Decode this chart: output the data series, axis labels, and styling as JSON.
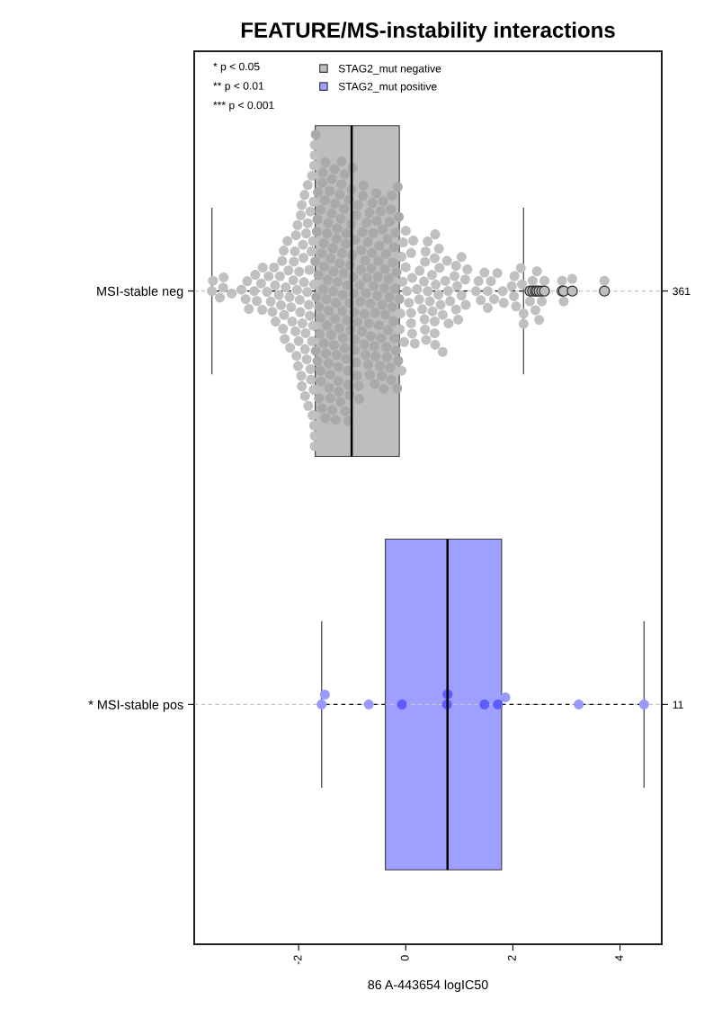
{
  "chart_data": {
    "type": "box",
    "orientation": "horizontal",
    "title": "FEATURE/MS-instability interactions",
    "xlabel": "86 A-443654 logIC50",
    "categories": [
      "MSI-stable neg",
      "* MSI-stable pos"
    ],
    "y2_categories": [
      "361",
      "11"
    ],
    "xlim": [
      -3.95,
      4.78
    ],
    "xticks": [
      -2,
      0,
      2,
      4
    ],
    "grid": "y",
    "legend": "top left",
    "marker": "circle",
    "annotations": [
      "* p < 0.05",
      "** p < 0.01",
      "*** p < 0.001"
    ],
    "series": [
      {
        "name": "STAG2_mut negative",
        "color": "#bebebe",
        "boxes": [
          {
            "low": -3.62,
            "q1": -1.69,
            "median": -1.01,
            "q3": -0.12,
            "high": 2.2,
            "outliers": [
              2.32,
              2.37,
              2.42,
              2.45,
              2.49,
              2.54,
              2.59,
              2.92,
              2.95,
              3.11,
              3.71
            ]
          },
          null
        ]
      },
      {
        "name": "STAG2_mut positive",
        "color": "#9f9fff",
        "boxes": [
          null,
          {
            "low": -1.57,
            "q1": -0.38,
            "median": 0.78,
            "q3": 1.79,
            "high": 4.45
          }
        ]
      },
      {
        "type": "scatter",
        "color": "#c0c0c0",
        "x": [
          "MSI-stable neg",
          "MSI-stable neg",
          "MSI-stable neg",
          "MSI-stable neg",
          "MSI-stable neg",
          "MSI-stable neg",
          "MSI-stable neg",
          "MSI-stable neg",
          "MSI-stable neg",
          "MSI-stable neg",
          "MSI-stable neg",
          "MSI-stable neg",
          "MSI-stable neg",
          "MSI-stable neg",
          "MSI-stable neg",
          "MSI-stable neg",
          "MSI-stable neg",
          "MSI-stable neg",
          "MSI-stable neg",
          "MSI-stable neg",
          "MSI-stable neg",
          "MSI-stable neg",
          "MSI-stable neg",
          "MSI-stable neg",
          "MSI-stable neg",
          "MSI-stable neg",
          "MSI-stable neg",
          "MSI-stable neg",
          "MSI-stable neg",
          "MSI-stable neg",
          "MSI-stable neg",
          "MSI-stable neg",
          "MSI-stable neg",
          "MSI-stable neg",
          "MSI-stable neg",
          "MSI-stable neg",
          "MSI-stable neg",
          "MSI-stable neg",
          "MSI-stable neg",
          "MSI-stable neg",
          "MSI-stable neg",
          "MSI-stable neg",
          "MSI-stable neg",
          "MSI-stable neg",
          "MSI-stable neg",
          "MSI-stable neg",
          "MSI-stable neg",
          "MSI-stable neg",
          "MSI-stable neg",
          "MSI-stable neg",
          "MSI-stable neg",
          "MSI-stable neg",
          "MSI-stable neg",
          "MSI-stable neg",
          "MSI-stable neg",
          "MSI-stable neg",
          "MSI-stable neg",
          "MSI-stable neg",
          "MSI-stable neg",
          "MSI-stable neg",
          "MSI-stable neg",
          "MSI-stable neg",
          "MSI-stable neg",
          "MSI-stable neg",
          "MSI-stable neg",
          "MSI-stable neg",
          "MSI-stable neg",
          "MSI-stable neg",
          "MSI-stable neg",
          "MSI-stable neg",
          "MSI-stable neg",
          "MSI-stable neg",
          "MSI-stable neg",
          "MSI-stable neg",
          "MSI-stable neg",
          "MSI-stable neg",
          "MSI-stable neg",
          "MSI-stable neg",
          "MSI-stable neg",
          "MSI-stable neg",
          "MSI-stable neg",
          "MSI-stable neg",
          "MSI-stable neg",
          "MSI-stable neg",
          "MSI-stable neg",
          "MSI-stable neg",
          "MSI-stable neg",
          "MSI-stable neg",
          "MSI-stable neg",
          "MSI-stable neg",
          "MSI-stable neg",
          "MSI-stable neg",
          "MSI-stable neg",
          "MSI-stable neg",
          "MSI-stable neg",
          "MSI-stable neg",
          "MSI-stable neg",
          "MSI-stable neg",
          "MSI-stable neg",
          "MSI-stable neg",
          "MSI-stable neg",
          "MSI-stable neg",
          "MSI-stable neg",
          "MSI-stable neg",
          "MSI-stable neg",
          "MSI-stable neg",
          "MSI-stable neg",
          "MSI-stable neg",
          "MSI-stable neg",
          "MSI-stable neg",
          "MSI-stable neg",
          "MSI-stable neg",
          "MSI-stable neg",
          "MSI-stable neg",
          "MSI-stable neg",
          "MSI-stable neg",
          "MSI-stable neg",
          "MSI-stable neg",
          "MSI-stable neg",
          "MSI-stable neg",
          "MSI-stable neg",
          "MSI-stable neg",
          "MSI-stable neg",
          "MSI-stable neg",
          "MSI-stable neg",
          "MSI-stable neg",
          "MSI-stable neg",
          "MSI-stable neg",
          "MSI-stable neg",
          "MSI-stable neg",
          "MSI-stable neg",
          "MSI-stable neg",
          "MSI-stable neg",
          "MSI-stable neg",
          "MSI-stable neg",
          "MSI-stable neg",
          "MSI-stable neg",
          "MSI-stable neg",
          "MSI-stable neg",
          "MSI-stable neg",
          "MSI-stable neg",
          "MSI-stable neg",
          "MSI-stable neg",
          "MSI-stable neg",
          "MSI-stable neg",
          "MSI-stable neg",
          "MSI-stable neg",
          "MSI-stable neg",
          "MSI-stable neg",
          "MSI-stable neg",
          "MSI-stable neg",
          "MSI-stable neg",
          "MSI-stable neg",
          "MSI-stable neg",
          "MSI-stable neg",
          "MSI-stable neg",
          "MSI-stable neg",
          "MSI-stable neg",
          "MSI-stable neg",
          "MSI-stable neg",
          "MSI-stable neg",
          "MSI-stable neg",
          "MSI-stable neg",
          "MSI-stable neg",
          "MSI-stable neg",
          "MSI-stable neg",
          "MSI-stable neg",
          "MSI-stable neg",
          "MSI-stable neg",
          "MSI-stable neg",
          "MSI-stable neg",
          "MSI-stable neg",
          "MSI-stable neg",
          "MSI-stable neg",
          "MSI-stable neg",
          "MSI-stable neg",
          "MSI-stable neg",
          "MSI-stable neg",
          "MSI-stable neg",
          "MSI-stable neg"
        ],
        "values": [
          -3.62,
          -3.6,
          -3.47,
          -3.41,
          -3.4,
          -3.25,
          -3.07,
          -2.99,
          -2.96,
          -2.93,
          -2.83,
          -2.81,
          -2.78,
          -2.7,
          -2.68,
          -2.67,
          -2.59,
          -2.56,
          -2.52,
          -2.49,
          -2.46,
          -2.44,
          -2.43,
          -2.37,
          -2.35,
          -2.33,
          -2.31,
          -2.29,
          -2.28,
          -2.27,
          -2.26,
          -2.24,
          -2.21,
          -2.19,
          -2.17,
          -2.16,
          -2.14,
          -2.12,
          -2.1,
          -2.09,
          -2.07,
          -2.06,
          -2.05,
          -2.04,
          -2.03,
          -2.02,
          -2.01,
          -2.0,
          -1.99,
          -1.98,
          -1.97,
          -1.96,
          -1.95,
          -1.94,
          -1.94,
          -1.93,
          -1.92,
          -1.91,
          -1.9,
          -1.89,
          -1.88,
          -1.88,
          -1.87,
          -1.86,
          -1.85,
          -1.84,
          -1.83,
          -1.83,
          -1.82,
          -1.81,
          -1.8,
          -1.79,
          -1.78,
          -1.78,
          -1.77,
          -1.76,
          -1.75,
          -1.75,
          -1.74,
          -1.73,
          -1.73,
          -1.72,
          -1.72,
          -1.71,
          -1.71,
          -1.71,
          -1.7,
          -1.7,
          -1.7,
          -1.7,
          -0.11,
          -0.1,
          -0.08,
          -0.08,
          -0.06,
          -0.05,
          -0.03,
          0.0,
          0.0,
          0.02,
          0.06,
          0.1,
          0.1,
          0.1,
          0.12,
          0.12,
          0.14,
          0.17,
          0.21,
          0.25,
          0.26,
          0.31,
          0.34,
          0.35,
          0.36,
          0.36,
          0.37,
          0.38,
          0.41,
          0.41,
          0.45,
          0.49,
          0.5,
          0.54,
          0.54,
          0.54,
          0.55,
          0.55,
          0.56,
          0.61,
          0.62,
          0.63,
          0.65,
          0.69,
          0.69,
          0.74,
          0.77,
          0.79,
          0.8,
          0.83,
          0.91,
          0.94,
          0.94,
          0.96,
          0.98,
          1.04,
          1.04,
          1.11,
          1.12,
          1.15,
          1.31,
          1.36,
          1.4,
          1.47,
          1.53,
          1.53,
          1.59,
          1.65,
          1.71,
          1.81,
          1.83,
          1.98,
          2.02,
          2.03,
          2.06,
          2.15,
          2.17,
          2.2,
          2.2,
          2.32,
          2.37,
          2.42,
          2.45,
          2.49,
          2.54,
          2.59,
          2.92,
          2.95,
          3.11,
          3.71
        ]
      },
      {
        "type": "scatter",
        "color": "#a9a9a9",
        "x": [
          "MSI-stable neg",
          "MSI-stable neg",
          "MSI-stable neg",
          "MSI-stable neg",
          "MSI-stable neg",
          "MSI-stable neg",
          "MSI-stable neg",
          "MSI-stable neg",
          "MSI-stable neg",
          "MSI-stable neg",
          "MSI-stable neg",
          "MSI-stable neg",
          "MSI-stable neg",
          "MSI-stable neg",
          "MSI-stable neg",
          "MSI-stable neg",
          "MSI-stable neg",
          "MSI-stable neg",
          "MSI-stable neg",
          "MSI-stable neg",
          "MSI-stable neg",
          "MSI-stable neg",
          "MSI-stable neg",
          "MSI-stable neg",
          "MSI-stable neg",
          "MSI-stable neg",
          "MSI-stable neg",
          "MSI-stable neg",
          "MSI-stable neg",
          "MSI-stable neg",
          "MSI-stable neg",
          "MSI-stable neg",
          "MSI-stable neg",
          "MSI-stable neg",
          "MSI-stable neg",
          "MSI-stable neg",
          "MSI-stable neg",
          "MSI-stable neg",
          "MSI-stable neg",
          "MSI-stable neg",
          "MSI-stable neg",
          "MSI-stable neg",
          "MSI-stable neg",
          "MSI-stable neg",
          "MSI-stable neg",
          "MSI-stable neg",
          "MSI-stable neg",
          "MSI-stable neg",
          "MSI-stable neg",
          "MSI-stable neg",
          "MSI-stable neg",
          "MSI-stable neg",
          "MSI-stable neg",
          "MSI-stable neg",
          "MSI-stable neg",
          "MSI-stable neg",
          "MSI-stable neg",
          "MSI-stable neg",
          "MSI-stable neg",
          "MSI-stable neg",
          "MSI-stable neg",
          "MSI-stable neg",
          "MSI-stable neg",
          "MSI-stable neg",
          "MSI-stable neg",
          "MSI-stable neg",
          "MSI-stable neg",
          "MSI-stable neg",
          "MSI-stable neg",
          "MSI-stable neg",
          "MSI-stable neg",
          "MSI-stable neg",
          "MSI-stable neg",
          "MSI-stable neg",
          "MSI-stable neg",
          "MSI-stable neg",
          "MSI-stable neg",
          "MSI-stable neg",
          "MSI-stable neg",
          "MSI-stable neg",
          "MSI-stable neg",
          "MSI-stable neg",
          "MSI-stable neg",
          "MSI-stable neg",
          "MSI-stable neg",
          "MSI-stable neg",
          "MSI-stable neg",
          "MSI-stable neg",
          "MSI-stable neg",
          "MSI-stable neg",
          "MSI-stable neg",
          "MSI-stable neg",
          "MSI-stable neg",
          "MSI-stable neg",
          "MSI-stable neg",
          "MSI-stable neg",
          "MSI-stable neg",
          "MSI-stable neg",
          "MSI-stable neg",
          "MSI-stable neg",
          "MSI-stable neg",
          "MSI-stable neg",
          "MSI-stable neg",
          "MSI-stable neg",
          "MSI-stable neg",
          "MSI-stable neg",
          "MSI-stable neg",
          "MSI-stable neg",
          "MSI-stable neg",
          "MSI-stable neg",
          "MSI-stable neg",
          "MSI-stable neg",
          "MSI-stable neg",
          "MSI-stable neg",
          "MSI-stable neg",
          "MSI-stable neg",
          "MSI-stable neg",
          "MSI-stable neg",
          "MSI-stable neg",
          "MSI-stable neg",
          "MSI-stable neg",
          "MSI-stable neg",
          "MSI-stable neg",
          "MSI-stable neg",
          "MSI-stable neg",
          "MSI-stable neg",
          "MSI-stable neg",
          "MSI-stable neg",
          "MSI-stable neg",
          "MSI-stable neg",
          "MSI-stable neg",
          "MSI-stable neg",
          "MSI-stable neg",
          "MSI-stable neg",
          "MSI-stable neg",
          "MSI-stable neg",
          "MSI-stable neg",
          "MSI-stable neg",
          "MSI-stable neg",
          "MSI-stable neg",
          "MSI-stable neg",
          "MSI-stable neg",
          "MSI-stable neg",
          "MSI-stable neg",
          "MSI-stable neg",
          "MSI-stable neg",
          "MSI-stable neg",
          "MSI-stable neg",
          "MSI-stable neg",
          "MSI-stable neg",
          "MSI-stable neg",
          "MSI-stable neg",
          "MSI-stable neg",
          "MSI-stable neg",
          "MSI-stable neg",
          "MSI-stable neg",
          "MSI-stable neg",
          "MSI-stable neg",
          "MSI-stable neg",
          "MSI-stable neg",
          "MSI-stable neg",
          "MSI-stable neg",
          "MSI-stable neg",
          "MSI-stable neg",
          "MSI-stable neg",
          "MSI-stable neg",
          "MSI-stable neg",
          "MSI-stable neg",
          "MSI-stable neg",
          "MSI-stable neg",
          "MSI-stable neg",
          "MSI-stable neg",
          "MSI-stable neg",
          "MSI-stable neg",
          "MSI-stable neg",
          "MSI-stable neg",
          "MSI-stable neg",
          "MSI-stable neg",
          "MSI-stable neg",
          "MSI-stable neg",
          "MSI-stable neg"
        ],
        "values": [
          -1.69,
          -1.68,
          -1.68,
          -1.67,
          -1.66,
          -1.65,
          -1.65,
          -1.64,
          -1.63,
          -1.62,
          -1.62,
          -1.61,
          -1.6,
          -1.59,
          -1.59,
          -1.58,
          -1.57,
          -1.56,
          -1.56,
          -1.55,
          -1.54,
          -1.53,
          -1.53,
          -1.52,
          -1.51,
          -1.5,
          -1.5,
          -1.49,
          -1.48,
          -1.47,
          -1.47,
          -1.46,
          -1.45,
          -1.44,
          -1.44,
          -1.43,
          -1.42,
          -1.41,
          -1.41,
          -1.4,
          -1.39,
          -1.38,
          -1.38,
          -1.37,
          -1.36,
          -1.35,
          -1.35,
          -1.34,
          -1.33,
          -1.32,
          -1.32,
          -1.31,
          -1.3,
          -1.29,
          -1.29,
          -1.28,
          -1.27,
          -1.26,
          -1.26,
          -1.25,
          -1.24,
          -1.23,
          -1.23,
          -1.22,
          -1.21,
          -1.2,
          -1.2,
          -1.19,
          -1.18,
          -1.17,
          -1.17,
          -1.16,
          -1.15,
          -1.14,
          -1.14,
          -1.13,
          -1.12,
          -1.11,
          -1.11,
          -1.1,
          -1.09,
          -1.08,
          -1.08,
          -1.07,
          -1.06,
          -1.05,
          -1.05,
          -1.04,
          -1.03,
          -1.02,
          -1.01,
          -1.0,
          -0.99,
          -0.98,
          -0.97,
          -0.96,
          -0.95,
          -0.95,
          -0.94,
          -0.93,
          -0.92,
          -0.91,
          -0.9,
          -0.89,
          -0.88,
          -0.87,
          -0.86,
          -0.85,
          -0.84,
          -0.83,
          -0.82,
          -0.81,
          -0.8,
          -0.79,
          -0.78,
          -0.77,
          -0.76,
          -0.75,
          -0.74,
          -0.73,
          -0.72,
          -0.71,
          -0.7,
          -0.69,
          -0.68,
          -0.67,
          -0.66,
          -0.65,
          -0.64,
          -0.63,
          -0.62,
          -0.61,
          -0.6,
          -0.59,
          -0.58,
          -0.57,
          -0.56,
          -0.55,
          -0.54,
          -0.53,
          -0.52,
          -0.51,
          -0.5,
          -0.49,
          -0.48,
          -0.47,
          -0.46,
          -0.45,
          -0.44,
          -0.43,
          -0.42,
          -0.41,
          -0.4,
          -0.39,
          -0.38,
          -0.37,
          -0.36,
          -0.35,
          -0.34,
          -0.33,
          -0.32,
          -0.31,
          -0.3,
          -0.29,
          -0.28,
          -0.27,
          -0.26,
          -0.25,
          -0.24,
          -0.23,
          -0.22,
          -0.21,
          -0.2,
          -0.19,
          -0.18,
          -0.17,
          -0.16,
          -0.15,
          -0.14,
          -0.13,
          -0.12
        ]
      },
      {
        "type": "scatter",
        "color": "#9999ff",
        "x": [
          "* MSI-stable pos",
          "* MSI-stable pos",
          "* MSI-stable pos",
          "* MSI-stable pos",
          "* MSI-stable pos",
          "* MSI-stable pos"
        ],
        "values": [
          -1.57,
          -1.51,
          -0.69,
          1.86,
          3.23,
          4.45
        ]
      },
      {
        "type": "scatter",
        "color": "#5c5cff",
        "x": [
          "* MSI-stable pos",
          "* MSI-stable pos",
          "* MSI-stable pos",
          "* MSI-stable pos",
          "* MSI-stable pos"
        ],
        "values": [
          -0.07,
          0.77,
          0.78,
          1.47,
          1.72
        ]
      }
    ]
  }
}
